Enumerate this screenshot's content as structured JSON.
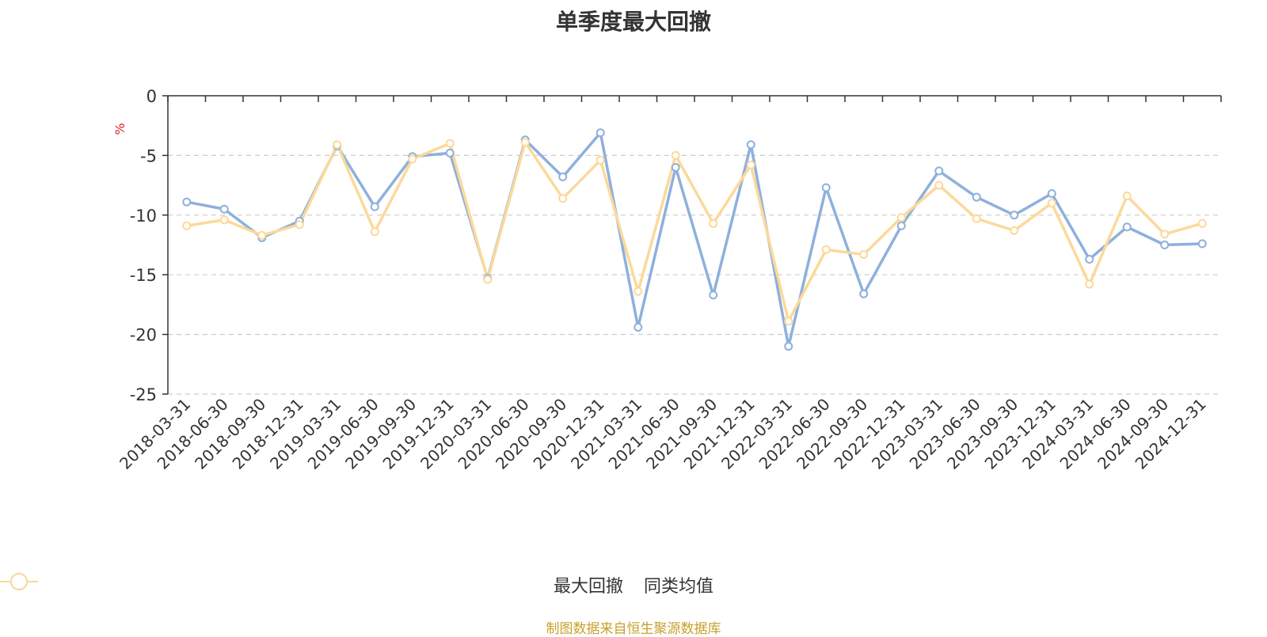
{
  "chart_data": {
    "type": "line",
    "title": "单季度最大回撤",
    "ylabel": "%",
    "ylim": [
      -25,
      0
    ],
    "yticks": [
      0,
      -5,
      -10,
      -15,
      -20,
      -25
    ],
    "grid": true,
    "legend_position": "bottom",
    "categories": [
      "2018-03-31",
      "2018-06-30",
      "2018-09-30",
      "2018-12-31",
      "2019-03-31",
      "2019-06-30",
      "2019-09-30",
      "2019-12-31",
      "2020-03-31",
      "2020-06-30",
      "2020-09-30",
      "2020-12-31",
      "2021-03-31",
      "2021-06-30",
      "2021-09-30",
      "2021-12-31",
      "2022-03-31",
      "2022-06-30",
      "2022-09-30",
      "2022-12-31",
      "2023-03-31",
      "2023-06-30",
      "2023-09-30",
      "2023-12-31",
      "2024-03-31",
      "2024-06-30",
      "2024-09-30",
      "2024-12-31"
    ],
    "series": [
      {
        "name": "最大回撤",
        "color": "#8eb0dc",
        "values": [
          -8.9,
          -9.5,
          -11.9,
          -10.5,
          -4.2,
          -9.3,
          -5.1,
          -4.8,
          -15.3,
          -3.7,
          -6.8,
          -3.1,
          -19.4,
          -6.0,
          -16.7,
          -4.1,
          -21.0,
          -7.7,
          -16.6,
          -10.9,
          -6.3,
          -8.5,
          -10.0,
          -8.2,
          -13.7,
          -11.0,
          -12.5,
          -12.4
        ]
      },
      {
        "name": "同类均值",
        "color": "#fcd99a",
        "values": [
          -10.9,
          -10.4,
          -11.7,
          -10.8,
          -4.1,
          -11.4,
          -5.3,
          -4.0,
          -15.4,
          -3.9,
          -8.6,
          -5.4,
          -16.4,
          -5.0,
          -10.7,
          -5.8,
          -18.9,
          -12.9,
          -13.3,
          -10.2,
          -7.5,
          -10.3,
          -11.3,
          -9.0,
          -15.8,
          -8.4,
          -11.6,
          -10.7
        ]
      }
    ]
  },
  "source": {
    "text": "制图数据来自恒生聚源数据库",
    "color": "#c8a02a"
  },
  "ylabel_color": "#e02020"
}
